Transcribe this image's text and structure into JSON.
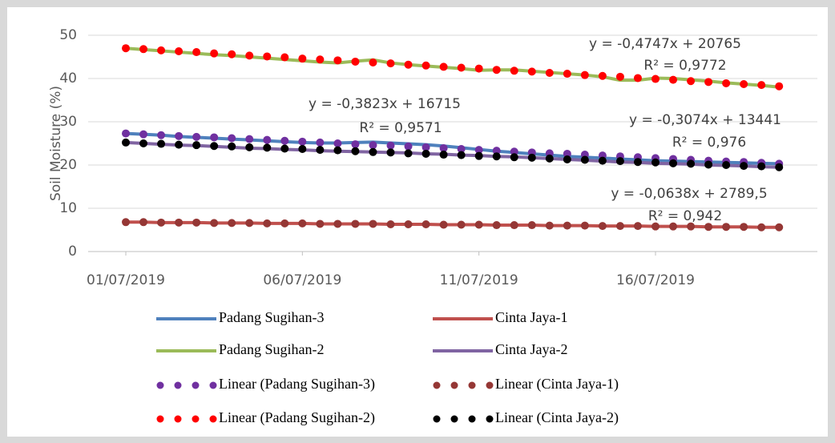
{
  "chart_data": {
    "type": "line",
    "y_label": "Soil Moisture (%)",
    "ylim": [
      0,
      50
    ],
    "yticks": [
      0,
      10,
      20,
      30,
      40,
      50
    ],
    "grid": true,
    "categories": [
      "01/07/2019",
      null,
      null,
      null,
      null,
      null,
      null,
      null,
      null,
      null,
      "06/07/2019",
      null,
      null,
      null,
      null,
      null,
      null,
      null,
      null,
      null,
      "11/07/2019",
      null,
      null,
      null,
      null,
      null,
      null,
      null,
      null,
      null,
      "16/07/2019",
      null,
      null,
      null,
      null,
      null,
      null,
      null
    ],
    "series": [
      {
        "name": "Padang Sugihan-3",
        "color": "#4f81bd",
        "style": "solid",
        "values": [
          27.3,
          27.1,
          26.9,
          26.6,
          26.4,
          26.2,
          26.0,
          25.8,
          25.6,
          25.4,
          25.2,
          25.1,
          25.1,
          25.2,
          25.3,
          25.1,
          24.9,
          24.7,
          24.4,
          24.0,
          23.6,
          23.2,
          22.9,
          22.6,
          22.3,
          22.0,
          21.8,
          21.6,
          21.4,
          21.2,
          21.0,
          20.9,
          20.8,
          20.7,
          20.6,
          20.5,
          20.4,
          20.3
        ]
      },
      {
        "name": "Cinta Jaya-1",
        "color": "#c0504d",
        "style": "solid",
        "values": [
          6.8,
          6.8,
          6.7,
          6.7,
          6.7,
          6.6,
          6.6,
          6.6,
          6.5,
          6.5,
          6.5,
          6.4,
          6.4,
          6.4,
          6.4,
          6.3,
          6.3,
          6.3,
          6.2,
          6.2,
          6.2,
          6.1,
          6.1,
          6.1,
          6.0,
          6.0,
          6.0,
          5.9,
          5.9,
          5.9,
          5.8,
          5.8,
          5.8,
          5.7,
          5.7,
          5.7,
          5.6,
          5.6
        ]
      },
      {
        "name": "Padang Sugihan-2",
        "color": "#9bbb59",
        "style": "solid",
        "values": [
          47.0,
          46.7,
          46.4,
          46.1,
          45.8,
          45.5,
          45.3,
          45.0,
          44.7,
          44.4,
          44.1,
          43.8,
          43.6,
          44.0,
          44.3,
          43.6,
          43.2,
          42.9,
          42.6,
          42.3,
          41.9,
          42.0,
          42.0,
          41.7,
          41.4,
          41.1,
          40.8,
          40.4,
          39.6,
          39.6,
          40.1,
          40.0,
          39.7,
          39.4,
          39.0,
          38.7,
          38.4,
          38.0
        ]
      },
      {
        "name": "Cinta Jaya-2",
        "color": "#8064a2",
        "style": "solid",
        "values": [
          25.2,
          25.0,
          24.8,
          24.6,
          24.5,
          24.3,
          24.1,
          23.9,
          23.8,
          23.6,
          23.5,
          23.3,
          23.2,
          23.1,
          23.0,
          22.9,
          22.8,
          22.6,
          22.5,
          22.3,
          22.2,
          22.0,
          21.9,
          21.7,
          21.5,
          21.3,
          21.1,
          20.9,
          20.7,
          20.6,
          20.4,
          20.3,
          20.2,
          20.0,
          19.9,
          19.8,
          19.6,
          19.5
        ]
      },
      {
        "name": "Linear (Padang Sugihan-3)",
        "color": "#7030a0",
        "style": "dots",
        "values": [
          27.3,
          27.1,
          26.9,
          26.7,
          26.5,
          26.4,
          26.2,
          26.0,
          25.8,
          25.6,
          25.4,
          25.2,
          25.0,
          24.8,
          24.6,
          24.5,
          24.3,
          24.1,
          23.9,
          23.7,
          23.5,
          23.3,
          23.1,
          22.9,
          22.7,
          22.6,
          22.4,
          22.2,
          22.0,
          21.8,
          21.6,
          21.4,
          21.2,
          21.0,
          20.8,
          20.7,
          20.5,
          20.3
        ]
      },
      {
        "name": "Linear (Cinta Jaya-1)",
        "color": "#953735",
        "style": "dots",
        "values": [
          6.8,
          6.8,
          6.7,
          6.7,
          6.7,
          6.6,
          6.6,
          6.6,
          6.5,
          6.5,
          6.5,
          6.4,
          6.4,
          6.4,
          6.4,
          6.3,
          6.3,
          6.3,
          6.2,
          6.2,
          6.2,
          6.1,
          6.1,
          6.1,
          6.0,
          6.0,
          6.0,
          5.9,
          5.9,
          5.9,
          5.8,
          5.8,
          5.8,
          5.7,
          5.7,
          5.7,
          5.6,
          5.6
        ]
      },
      {
        "name": "Linear (Padang Sugihan-2)",
        "color": "#ff0000",
        "style": "dots",
        "values": [
          47.0,
          46.8,
          46.5,
          46.3,
          46.1,
          45.8,
          45.6,
          45.3,
          45.1,
          44.9,
          44.6,
          44.4,
          44.2,
          43.9,
          43.7,
          43.5,
          43.2,
          43.0,
          42.7,
          42.5,
          42.3,
          42.0,
          41.8,
          41.6,
          41.3,
          41.1,
          40.8,
          40.6,
          40.4,
          40.1,
          39.9,
          39.7,
          39.4,
          39.2,
          38.9,
          38.7,
          38.5,
          38.2
        ]
      },
      {
        "name": "Linear (Cinta Jaya-2)",
        "color": "#000000",
        "style": "dots",
        "values": [
          25.2,
          25.0,
          24.9,
          24.7,
          24.6,
          24.4,
          24.3,
          24.1,
          24.0,
          23.8,
          23.7,
          23.5,
          23.4,
          23.2,
          23.0,
          22.9,
          22.7,
          22.6,
          22.4,
          22.3,
          22.1,
          22.0,
          21.8,
          21.7,
          21.5,
          21.3,
          21.2,
          21.0,
          20.9,
          20.7,
          20.6,
          20.4,
          20.3,
          20.1,
          20.0,
          19.8,
          19.7,
          19.5
        ]
      }
    ],
    "annotations": [
      "y = -0,4747x + 20765",
      "R² = 0,9772",
      "y = -0,3823x + 16715",
      "R² = 0,9571",
      "y = -0,3074x + 13441",
      "R² = 0,976",
      "y = -0,0638x + 2789,5",
      "R² = 0,942"
    ]
  }
}
